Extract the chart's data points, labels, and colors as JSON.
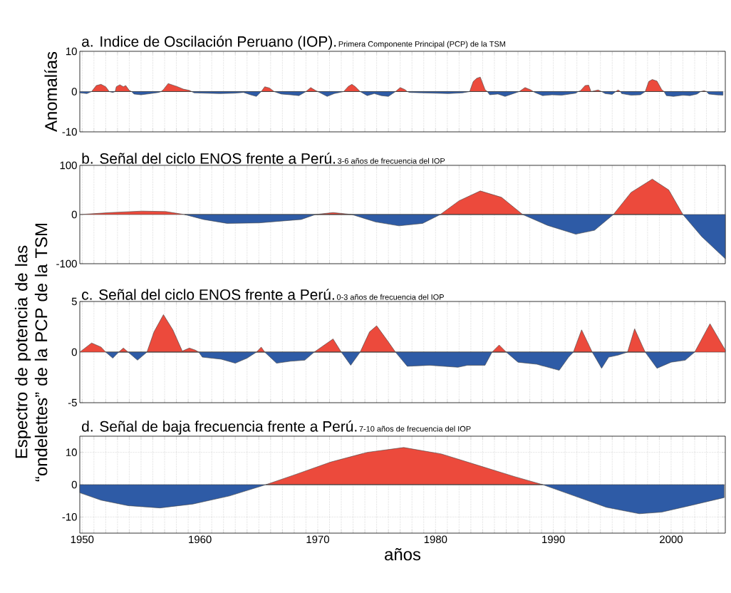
{
  "chart_data": [
    {
      "type": "area",
      "title": "a. Indice de Oscilación Peruano (IOP).",
      "subtitle": "Primera Componente Principal (PCP) de la TSM",
      "ylabel": "Anomalías",
      "series": [
        {
          "color": "#ec4a3c",
          "x": [
            1950.8,
            1951.2,
            1951.6,
            1952.0,
            1952.3,
            1952.8,
            1952.9,
            1953.2,
            1953.5,
            1953.7,
            1954.0,
            1954.2,
            1956.7,
            1956.9,
            1957.3,
            1957.7,
            1958.1,
            1958.6,
            1959.1,
            1959.3,
            1965.2,
            1965.5,
            1965.9,
            1966.3,
            1969.0,
            1969.4,
            1969.8,
            1970.0,
            1972.2,
            1972.6,
            1972.9,
            1973.2,
            1973.6,
            1976.6,
            1977.0,
            1977.4,
            1977.6,
            1982.9,
            1983.2,
            1983.5,
            1983.8,
            1984.2,
            1984.4,
            1987.1,
            1987.6,
            1988.1,
            1988.3,
            1992.1,
            1992.3,
            1992.7,
            1993.0,
            1993.2,
            1993.8,
            1994.1,
            1995.3,
            1995.5,
            1995.7,
            1997.8,
            1998.1,
            1998.4,
            1998.8,
            1999.2,
            1999.4,
            2002.5,
            2002.8,
            2003.0
          ],
          "values": [
            0,
            1.5,
            1.8,
            1.2,
            0,
            0,
            1.2,
            1.7,
            1.2,
            1.5,
            0.3,
            0,
            0,
            0.5,
            2.0,
            1.6,
            1.2,
            0.6,
            0.3,
            0,
            0,
            1.2,
            0.9,
            0,
            0,
            1.0,
            0.3,
            0,
            0,
            1.3,
            1.8,
            1.2,
            0,
            0,
            1.0,
            0.5,
            0,
            0,
            2.5,
            3.3,
            3.6,
            0.5,
            0,
            0,
            1.0,
            0.4,
            0,
            0,
            0.2,
            1.5,
            1.6,
            0,
            0.4,
            0,
            0,
            0.4,
            0,
            0,
            2.5,
            3.0,
            2.6,
            0.5,
            0,
            0,
            0.2,
            0
          ]
        },
        {
          "color": "#2e5ba6",
          "x": [
            1949.8,
            1950.4,
            1950.8,
            1952.3,
            1952.6,
            1952.8,
            1954.2,
            1954.4,
            1955.0,
            1955.8,
            1956.5,
            1956.7,
            1959.3,
            1959.5,
            1960.5,
            1961.7,
            1962.9,
            1963.7,
            1964.3,
            1964.8,
            1965.2,
            1966.3,
            1966.9,
            1967.7,
            1968.4,
            1969.0,
            1970.0,
            1970.4,
            1970.8,
            1971.4,
            1972.2,
            1973.6,
            1974.2,
            1974.8,
            1975.4,
            1976.0,
            1976.6,
            1977.6,
            1977.8,
            1978.8,
            1980.0,
            1981.1,
            1982.3,
            1982.9,
            1984.4,
            1984.6,
            1985.3,
            1985.9,
            1986.5,
            1987.1,
            1988.3,
            1988.5,
            1989.1,
            1989.9,
            1990.7,
            1991.9,
            1992.1,
            1993.2,
            1994.1,
            1994.4,
            1995.0,
            1995.3,
            1995.7,
            1995.8,
            1996.6,
            1997.4,
            1997.8,
            1999.4,
            1999.6,
            2000.2,
            2001.0,
            2001.6,
            2002.2,
            2002.5,
            2003.0,
            2003.2,
            2003.8,
            2004.4
          ],
          "values": [
            -0.3,
            -0.5,
            0,
            0,
            -0.2,
            0,
            0,
            -0.6,
            -0.8,
            -0.5,
            -0.2,
            0,
            0,
            -0.3,
            -0.4,
            -0.5,
            -0.4,
            -0.2,
            -0.8,
            -1.2,
            0,
            0,
            -0.6,
            -0.8,
            -1.0,
            0,
            0,
            -0.6,
            -1.2,
            -0.5,
            0,
            0,
            -1.0,
            -0.5,
            -1.0,
            -1.2,
            0,
            0,
            -0.2,
            -0.3,
            -0.4,
            -0.5,
            -0.3,
            0,
            0,
            -0.8,
            -0.6,
            -1.2,
            -0.6,
            0,
            0,
            -0.3,
            -1.0,
            -0.8,
            -0.9,
            -0.4,
            0,
            0,
            0,
            -0.5,
            -0.7,
            0,
            0,
            -0.5,
            -0.9,
            -0.8,
            0,
            0,
            -1.0,
            -1.2,
            -0.9,
            -1.0,
            -0.6,
            0,
            0,
            -0.6,
            -0.8,
            -0.9
          ]
        }
      ],
      "xlim": [
        1949.8,
        2004.6
      ],
      "ylim": [
        -10,
        10
      ],
      "yticks": [
        -10,
        0,
        10
      ],
      "grid": "x",
      "tick_labels": "y",
      "xticks": [
        1950,
        {
          "value": 1951,
          "label": null
        },
        {
          "value": 1952,
          "label": null
        },
        {
          "value": 1953,
          "label": null
        },
        {
          "value": 1954,
          "label": null
        },
        {
          "value": 1955,
          "label": null
        },
        {
          "value": 1956,
          "label": null
        },
        {
          "value": 1957,
          "label": null
        },
        {
          "value": 1958,
          "label": null
        },
        {
          "value": 1959,
          "label": null
        },
        1960,
        {
          "value": 1961,
          "label": null
        },
        {
          "value": 1962,
          "label": null
        },
        {
          "value": 1963,
          "label": null
        },
        {
          "value": 1964,
          "label": null
        },
        {
          "value": 1965,
          "label": null
        },
        {
          "value": 1966,
          "label": null
        },
        {
          "value": 1967,
          "label": null
        },
        {
          "value": 1968,
          "label": null
        },
        {
          "value": 1969,
          "label": null
        },
        1970,
        {
          "value": 1971,
          "label": null
        },
        {
          "value": 1972,
          "label": null
        },
        {
          "value": 1973,
          "label": null
        },
        {
          "value": 1974,
          "label": null
        },
        {
          "value": 1975,
          "label": null
        },
        {
          "value": 1976,
          "label": null
        },
        {
          "value": 1977,
          "label": null
        },
        {
          "value": 1978,
          "label": null
        },
        {
          "value": 1979,
          "label": null
        },
        1980,
        {
          "value": 1981,
          "label": null
        },
        {
          "value": 1982,
          "label": null
        },
        {
          "value": 1983,
          "label": null
        },
        {
          "value": 1984,
          "label": null
        },
        {
          "value": 1985,
          "label": null
        },
        {
          "value": 1986,
          "label": null
        },
        {
          "value": 1987,
          "label": null
        },
        {
          "value": 1988,
          "label": null
        },
        {
          "value": 1989,
          "label": null
        },
        1990,
        {
          "value": 1991,
          "label": null
        },
        {
          "value": 1992,
          "label": null
        },
        {
          "value": 1993,
          "label": null
        },
        {
          "value": 1994,
          "label": null
        },
        {
          "value": 1995,
          "label": null
        },
        {
          "value": 1996,
          "label": null
        },
        {
          "value": 1997,
          "label": null
        },
        {
          "value": 1998,
          "label": null
        },
        {
          "value": 1999,
          "label": null
        },
        2000,
        {
          "value": 2001,
          "label": null
        },
        {
          "value": 2002,
          "label": null
        },
        {
          "value": 2003,
          "label": null
        },
        {
          "value": 2004,
          "label": null
        }
      ]
    },
    {
      "type": "area",
      "title": "b. Señal del ciclo ENOS frente a Perú.",
      "subtitle": "3-6 años de frecuencia del IOP",
      "series": [
        {
          "color": "#ec4a3c",
          "x": [
            1949.8,
            1952.4,
            1955.1,
            1957.1,
            1958.7,
            1969.8,
            1971.3,
            1972.9,
            1980.4,
            1982.0,
            1983.8,
            1985.6,
            1987.4,
            1995.1,
            1996.6,
            1998.4,
            1999.8,
            2001.0
          ],
          "values": [
            0,
            4,
            7,
            6,
            0,
            0,
            4,
            0,
            0,
            28,
            48,
            35,
            0,
            0,
            45,
            72,
            50,
            0
          ]
        },
        {
          "color": "#2e5ba6",
          "x": [
            1958.7,
            1960.3,
            1962.3,
            1965.0,
            1968.6,
            1969.8,
            1972.9,
            1974.9,
            1976.9,
            1978.9,
            1980.4,
            1987.4,
            1989.5,
            1991.9,
            1993.5,
            1995.1,
            2001.0,
            2002.6,
            2004.6
          ],
          "values": [
            0,
            -10,
            -18,
            -17,
            -10,
            0,
            0,
            -15,
            -23,
            -18,
            0,
            0,
            -22,
            -40,
            -32,
            0,
            0,
            -45,
            -90
          ]
        }
      ],
      "xlim": [
        1949.8,
        2004.6
      ],
      "ylim": [
        -100,
        100
      ],
      "yticks": [
        -100,
        0,
        100
      ],
      "grid": "x",
      "tick_labels": "y",
      "xticks": [
        1950,
        {
          "value": 1951,
          "label": null
        },
        {
          "value": 1952,
          "label": null
        },
        {
          "value": 1953,
          "label": null
        },
        {
          "value": 1954,
          "label": null
        },
        {
          "value": 1955,
          "label": null
        },
        {
          "value": 1956,
          "label": null
        },
        {
          "value": 1957,
          "label": null
        },
        {
          "value": 1958,
          "label": null
        },
        {
          "value": 1959,
          "label": null
        },
        1960,
        {
          "value": 1961,
          "label": null
        },
        {
          "value": 1962,
          "label": null
        },
        {
          "value": 1963,
          "label": null
        },
        {
          "value": 1964,
          "label": null
        },
        {
          "value": 1965,
          "label": null
        },
        {
          "value": 1966,
          "label": null
        },
        {
          "value": 1967,
          "label": null
        },
        {
          "value": 1968,
          "label": null
        },
        {
          "value": 1969,
          "label": null
        },
        1970,
        {
          "value": 1971,
          "label": null
        },
        {
          "value": 1972,
          "label": null
        },
        {
          "value": 1973,
          "label": null
        },
        {
          "value": 1974,
          "label": null
        },
        {
          "value": 1975,
          "label": null
        },
        {
          "value": 1976,
          "label": null
        },
        {
          "value": 1977,
          "label": null
        },
        {
          "value": 1978,
          "label": null
        },
        {
          "value": 1979,
          "label": null
        },
        1980,
        {
          "value": 1981,
          "label": null
        },
        {
          "value": 1982,
          "label": null
        },
        {
          "value": 1983,
          "label": null
        },
        {
          "value": 1984,
          "label": null
        },
        {
          "value": 1985,
          "label": null
        },
        {
          "value": 1986,
          "label": null
        },
        {
          "value": 1987,
          "label": null
        },
        {
          "value": 1988,
          "label": null
        },
        {
          "value": 1989,
          "label": null
        },
        1990,
        {
          "value": 1991,
          "label": null
        },
        {
          "value": 1992,
          "label": null
        },
        {
          "value": 1993,
          "label": null
        },
        {
          "value": 1994,
          "label": null
        },
        {
          "value": 1995,
          "label": null
        },
        {
          "value": 1996,
          "label": null
        },
        {
          "value": 1997,
          "label": null
        },
        {
          "value": 1998,
          "label": null
        },
        {
          "value": 1999,
          "label": null
        },
        2000,
        {
          "value": 2001,
          "label": null
        },
        {
          "value": 2002,
          "label": null
        },
        {
          "value": 2003,
          "label": null
        },
        {
          "value": 2004,
          "label": null
        }
      ]
    },
    {
      "type": "area",
      "title": "c. Señal del ciclo ENOS frente a Perú.",
      "subtitle": "0-3 años de frecuencia del IOP",
      "ylabel": "Espectro de potencia de las “ondelettes” de la PCP de la TSM",
      "series": [
        {
          "color": "#ec4a3c",
          "x": [
            1949.8,
            1950.8,
            1951.6,
            1952.0,
            1953.1,
            1953.5,
            1953.9,
            1955.5,
            1956.1,
            1956.9,
            1957.7,
            1958.5,
            1959.1,
            1959.6,
            1959.9,
            1964.8,
            1965.2,
            1965.5,
            1969.7,
            1971.3,
            1972.0,
            1973.6,
            1974.4,
            1975.0,
            1976.0,
            1976.6,
            1984.8,
            1985.4,
            1986.0,
            1991.7,
            1992.4,
            1993.1,
            1993.3,
            1996.3,
            1996.9,
            1997.6,
            1997.8,
            2002.0,
            2003.3,
            2004.6
          ],
          "values": [
            0,
            0.9,
            0.5,
            0,
            0,
            0.4,
            0,
            0,
            2.0,
            3.7,
            2.2,
            0.1,
            0.4,
            0.2,
            0,
            0,
            0.5,
            0,
            0,
            1.3,
            0,
            0,
            2.0,
            2.6,
            1.0,
            0,
            0,
            0.7,
            0,
            0,
            2.2,
            0.5,
            0,
            0,
            2.3,
            0.5,
            0,
            0,
            2.8,
            0.2
          ]
        },
        {
          "color": "#2e5ba6",
          "x": [
            1952.0,
            1952.6,
            1953.1,
            1953.9,
            1954.7,
            1955.5,
            1959.9,
            1960.2,
            1961.8,
            1963.0,
            1964.0,
            1964.8,
            1965.5,
            1966.5,
            1967.7,
            1968.9,
            1969.7,
            1972.0,
            1972.8,
            1973.6,
            1976.6,
            1977.6,
            1979.5,
            1981.9,
            1982.7,
            1984.2,
            1984.8,
            1986.0,
            1987.0,
            1988.6,
            1990.5,
            1991.3,
            1991.7,
            1993.3,
            1994.1,
            1994.7,
            1995.5,
            1996.3,
            1997.8,
            1998.8,
            2000.0,
            2001.2,
            2002.0
          ],
          "values": [
            0,
            -0.6,
            0,
            0,
            -0.8,
            0,
            0,
            -0.5,
            -0.7,
            -1.1,
            -0.6,
            0,
            0,
            -1.1,
            -0.9,
            -0.8,
            0,
            0,
            -1.3,
            0,
            0,
            -1.4,
            -1.3,
            -1.5,
            -1.3,
            -1.3,
            0,
            0,
            -1.0,
            -1.2,
            -1.8,
            -0.5,
            0,
            0,
            -1.6,
            -0.5,
            -0.3,
            0,
            0,
            -1.6,
            -1.0,
            -0.8,
            0
          ]
        }
      ],
      "xlim": [
        1949.8,
        2004.6
      ],
      "ylim": [
        -5,
        5
      ],
      "yticks": [
        -5,
        0,
        5
      ],
      "grid": "x",
      "tick_labels": "y",
      "xticks": [
        1950,
        {
          "value": 1951,
          "label": null
        },
        {
          "value": 1952,
          "label": null
        },
        {
          "value": 1953,
          "label": null
        },
        {
          "value": 1954,
          "label": null
        },
        {
          "value": 1955,
          "label": null
        },
        {
          "value": 1956,
          "label": null
        },
        {
          "value": 1957,
          "label": null
        },
        {
          "value": 1958,
          "label": null
        },
        {
          "value": 1959,
          "label": null
        },
        1960,
        {
          "value": 1961,
          "label": null
        },
        {
          "value": 1962,
          "label": null
        },
        {
          "value": 1963,
          "label": null
        },
        {
          "value": 1964,
          "label": null
        },
        {
          "value": 1965,
          "label": null
        },
        {
          "value": 1966,
          "label": null
        },
        {
          "value": 1967,
          "label": null
        },
        {
          "value": 1968,
          "label": null
        },
        {
          "value": 1969,
          "label": null
        },
        1970,
        {
          "value": 1971,
          "label": null
        },
        {
          "value": 1972,
          "label": null
        },
        {
          "value": 1973,
          "label": null
        },
        {
          "value": 1974,
          "label": null
        },
        {
          "value": 1975,
          "label": null
        },
        {
          "value": 1976,
          "label": null
        },
        {
          "value": 1977,
          "label": null
        },
        {
          "value": 1978,
          "label": null
        },
        {
          "value": 1979,
          "label": null
        },
        1980,
        {
          "value": 1981,
          "label": null
        },
        {
          "value": 1982,
          "label": null
        },
        {
          "value": 1983,
          "label": null
        },
        {
          "value": 1984,
          "label": null
        },
        {
          "value": 1985,
          "label": null
        },
        {
          "value": 1986,
          "label": null
        },
        {
          "value": 1987,
          "label": null
        },
        {
          "value": 1988,
          "label": null
        },
        {
          "value": 1989,
          "label": null
        },
        1990,
        {
          "value": 1991,
          "label": null
        },
        {
          "value": 1992,
          "label": null
        },
        {
          "value": 1993,
          "label": null
        },
        {
          "value": 1994,
          "label": null
        },
        {
          "value": 1995,
          "label": null
        },
        {
          "value": 1996,
          "label": null
        },
        {
          "value": 1997,
          "label": null
        },
        {
          "value": 1998,
          "label": null
        },
        {
          "value": 1999,
          "label": null
        },
        2000,
        {
          "value": 2001,
          "label": null
        },
        {
          "value": 2002,
          "label": null
        },
        {
          "value": 2003,
          "label": null
        },
        {
          "value": 2004,
          "label": null
        }
      ]
    },
    {
      "type": "area",
      "title": "d. Señal de baja frecuencia frente a Perú.",
      "subtitle": "7-10 años de frecuencia del IOP",
      "xlabel": "años",
      "series": [
        {
          "color": "#ec4a3c",
          "x": [
            1965.6,
            1968.0,
            1971.1,
            1974.2,
            1977.3,
            1980.5,
            1983.6,
            1986.7,
            1989.1
          ],
          "values": [
            0,
            3,
            7,
            10,
            11.5,
            9.5,
            6,
            2.5,
            0
          ]
        },
        {
          "color": "#2e5ba6",
          "x": [
            1949.8,
            1951.6,
            1953.9,
            1956.6,
            1959.4,
            1962.5,
            1965.6,
            1989.1,
            1991.8,
            1994.5,
            1997.3,
            1999.2,
            2001.6,
            2004.5
          ],
          "values": [
            -2.5,
            -4.8,
            -6.5,
            -7.2,
            -6,
            -3.5,
            0,
            0,
            -3.5,
            -7,
            -9,
            -8.5,
            -6.5,
            -4
          ]
        }
      ],
      "xlim": [
        1949.8,
        2004.6
      ],
      "ylim": [
        -15,
        15
      ],
      "yticks": [
        -10,
        0,
        10
      ],
      "grid": true,
      "xticks": [
        1950,
        {
          "value": 1951,
          "label": null
        },
        {
          "value": 1952,
          "label": null
        },
        {
          "value": 1953,
          "label": null
        },
        {
          "value": 1954,
          "label": null
        },
        {
          "value": 1955,
          "label": null
        },
        {
          "value": 1956,
          "label": null
        },
        {
          "value": 1957,
          "label": null
        },
        {
          "value": 1958,
          "label": null
        },
        {
          "value": 1959,
          "label": null
        },
        1960,
        {
          "value": 1961,
          "label": null
        },
        {
          "value": 1962,
          "label": null
        },
        {
          "value": 1963,
          "label": null
        },
        {
          "value": 1964,
          "label": null
        },
        {
          "value": 1965,
          "label": null
        },
        {
          "value": 1966,
          "label": null
        },
        {
          "value": 1967,
          "label": null
        },
        {
          "value": 1968,
          "label": null
        },
        {
          "value": 1969,
          "label": null
        },
        1970,
        {
          "value": 1971,
          "label": null
        },
        {
          "value": 1972,
          "label": null
        },
        {
          "value": 1973,
          "label": null
        },
        {
          "value": 1974,
          "label": null
        },
        {
          "value": 1975,
          "label": null
        },
        {
          "value": 1976,
          "label": null
        },
        {
          "value": 1977,
          "label": null
        },
        {
          "value": 1978,
          "label": null
        },
        {
          "value": 1979,
          "label": null
        },
        1980,
        {
          "value": 1981,
          "label": null
        },
        {
          "value": 1982,
          "label": null
        },
        {
          "value": 1983,
          "label": null
        },
        {
          "value": 1984,
          "label": null
        },
        {
          "value": 1985,
          "label": null
        },
        {
          "value": 1986,
          "label": null
        },
        {
          "value": 1987,
          "label": null
        },
        {
          "value": 1988,
          "label": null
        },
        {
          "value": 1989,
          "label": null
        },
        1990,
        {
          "value": 1991,
          "label": null
        },
        {
          "value": 1992,
          "label": null
        },
        {
          "value": 1993,
          "label": null
        },
        {
          "value": 1994,
          "label": null
        },
        {
          "value": 1995,
          "label": null
        },
        {
          "value": 1996,
          "label": null
        },
        {
          "value": 1997,
          "label": null
        },
        {
          "value": 1998,
          "label": null
        },
        {
          "value": 1999,
          "label": null
        },
        2000,
        {
          "value": 2001,
          "label": null
        },
        {
          "value": 2002,
          "label": null
        },
        {
          "value": 2003,
          "label": null
        },
        {
          "value": 2004,
          "label": null
        }
      ]
    }
  ]
}
